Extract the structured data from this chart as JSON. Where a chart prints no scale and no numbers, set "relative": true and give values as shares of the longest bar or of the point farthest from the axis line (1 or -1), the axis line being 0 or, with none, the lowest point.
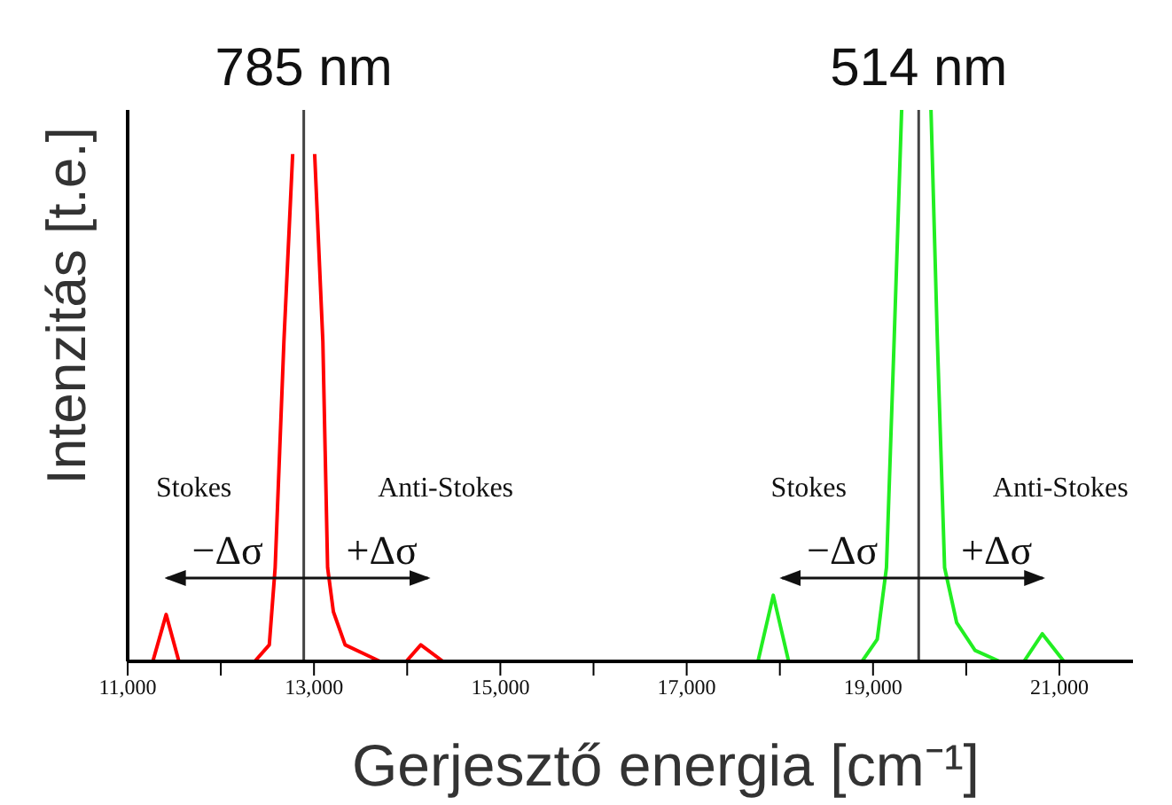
{
  "chart_data": {
    "type": "line",
    "relative": true,
    "xlabel": "Gerjesztő energia [cm⁻¹]",
    "ylabel": "Intenzitás [t.e.]",
    "xlim": [
      11000,
      21790
    ],
    "xticks": [
      {
        "value": 11000,
        "label": "11,000"
      },
      {
        "value": 12000,
        "label": null
      },
      {
        "value": 13000,
        "label": "13,000"
      },
      {
        "value": 14000,
        "label": null
      },
      {
        "value": 15000,
        "label": "15,000"
      },
      {
        "value": 16000,
        "label": null
      },
      {
        "value": 17000,
        "label": "17,000"
      },
      {
        "value": 18000,
        "label": null
      },
      {
        "value": 19000,
        "label": "19,000"
      },
      {
        "value": 20000,
        "label": null
      },
      {
        "value": 21000,
        "label": "21,000"
      }
    ],
    "tick_labels": "x",
    "series": [
      {
        "color": "#ff0000",
        "x": [
          11000,
          11270,
          11413,
          11550,
          12364,
          12520,
          12583,
          12677,
          12771,
          12890,
          13007,
          13095,
          13146,
          13208,
          13334,
          13583,
          13709,
          13990,
          14146,
          14384,
          21790
        ],
        "values": [
          0,
          0,
          0.085,
          0,
          0,
          0.03,
          0.17,
          0.58,
          0.92,
          null,
          0.92,
          0.58,
          0.17,
          0.09,
          0.03,
          0.01,
          0,
          0,
          0.03,
          0,
          0
        ]
      },
      {
        "color": "#22ee22",
        "x": [
          11000,
          17765,
          17929,
          18094,
          18882,
          19045,
          19144,
          19228,
          19307,
          19490,
          19622,
          19689,
          19768,
          19898,
          20095,
          20358,
          20620,
          20817,
          21048,
          21790
        ],
        "values": [
          0,
          0,
          0.12,
          0,
          0,
          0.04,
          0.17,
          0.59,
          1,
          null,
          1,
          0.59,
          0.17,
          0.07,
          0.02,
          0,
          0,
          0.05,
          0,
          0
        ]
      }
    ],
    "ref_lines": [
      {
        "axis": "x",
        "value": 12890,
        "color": "#444444"
      },
      {
        "axis": "x",
        "value": 19490,
        "color": "#444444"
      }
    ],
    "annotations": [
      "785 nm",
      "Stokes",
      "Anti-Stokes",
      "−Δσ",
      "+Δσ",
      "514 nm",
      "Stokes",
      "Anti-Stokes",
      "−Δσ",
      "+Δσ"
    ]
  }
}
